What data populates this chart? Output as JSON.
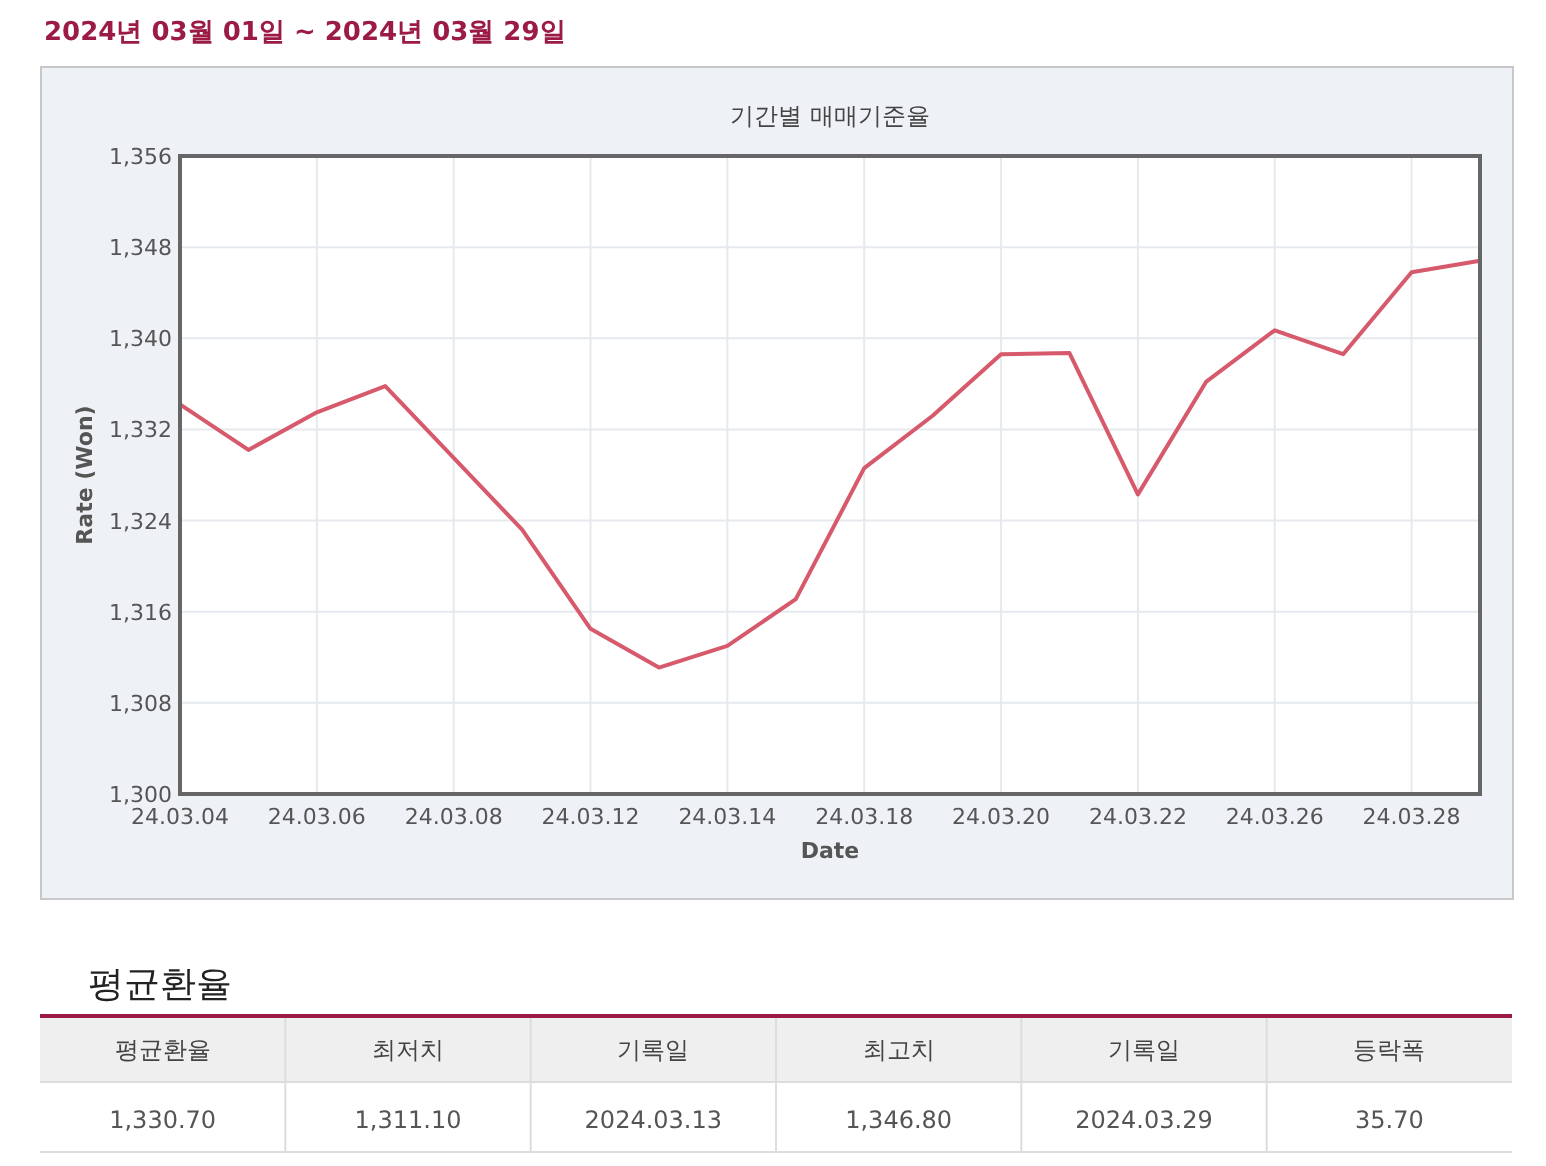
{
  "chart_data": {
    "type": "line",
    "subtitle": "2024년 03월 01일 ~ 2024년 03월 29일",
    "title": "기간별 매매기준율",
    "xlabel": "Date",
    "ylabel": "Rate (Won)",
    "categories": [
      "24.03.04",
      null,
      "24.03.06",
      null,
      "24.03.08",
      null,
      "24.03.12",
      null,
      "24.03.14",
      null,
      "24.03.18",
      null,
      "24.03.20",
      null,
      "24.03.22",
      null,
      "24.03.26",
      null,
      "24.03.28",
      null
    ],
    "series": [
      {
        "color": "#d65a6b",
        "values": [
          1334.2,
          1330.2,
          1333.5,
          1335.8,
          1329.5,
          1323.2,
          1314.5,
          1311.1,
          1313.0,
          1317.1,
          1328.6,
          1333.2,
          1338.6,
          1338.7,
          1326.3,
          1336.2,
          1340.7,
          1338.6,
          1345.8,
          1346.8
        ]
      }
    ],
    "ylim": [
      1300,
      1356
    ],
    "yticks": [
      {
        "value": 1300,
        "label": "1,300"
      },
      {
        "value": 1308,
        "label": "1,308"
      },
      {
        "value": 1316,
        "label": "1,316"
      },
      {
        "value": 1324,
        "label": "1,324"
      },
      {
        "value": 1332,
        "label": "1,332"
      },
      {
        "value": 1340,
        "label": "1,340"
      },
      {
        "value": 1348,
        "label": "1,348"
      },
      {
        "value": 1356,
        "label": "1,356"
      }
    ],
    "grid": true,
    "marker": "none",
    "line_style": "solid",
    "annotations": [
      "평균환율",
      "평균환율",
      "최저치",
      "기록일",
      "최고치",
      "기록일",
      "등락폭",
      "1,330.70",
      "1,311.10",
      "2024.03.13",
      "1,346.80",
      "2024.03.29",
      "35.70"
    ]
  }
}
